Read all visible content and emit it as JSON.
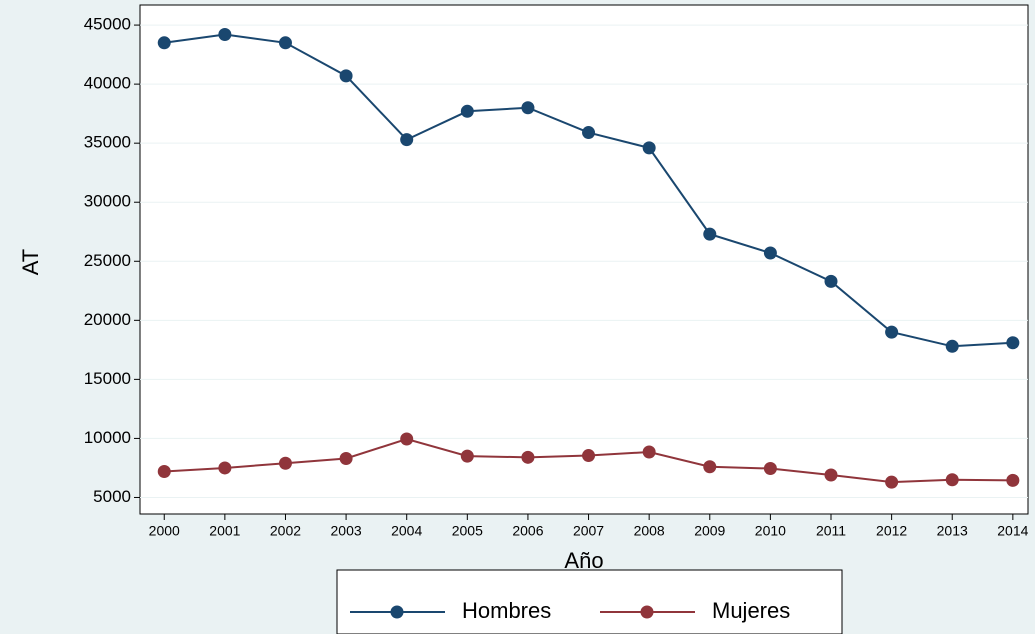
{
  "chart_data": {
    "type": "line",
    "x_label": "Año",
    "y_label": "AT",
    "x": [
      2000,
      2001,
      2002,
      2003,
      2004,
      2005,
      2006,
      2007,
      2008,
      2009,
      2010,
      2011,
      2012,
      2013,
      2014
    ],
    "series": [
      {
        "name": "Hombres",
        "color": "#1a476f",
        "values": [
          43500,
          44200,
          43500,
          40700,
          35300,
          37700,
          38000,
          35900,
          34600,
          27300,
          25700,
          23300,
          19000,
          17800,
          18100
        ]
      },
      {
        "name": "Mujeres",
        "color": "#90353b",
        "values": [
          7200,
          7500,
          7900,
          8300,
          9950,
          8500,
          8400,
          8550,
          8850,
          7600,
          7450,
          6900,
          6300,
          6500,
          6450
        ]
      }
    ],
    "xlim": [
      1999.6,
      2014.25
    ],
    "xticks": [
      2000,
      2001,
      2002,
      2003,
      2004,
      2005,
      2006,
      2007,
      2008,
      2009,
      2010,
      2011,
      2012,
      2013,
      2014
    ],
    "ylim": [
      3600,
      46700
    ],
    "yticks": [
      5000,
      10000,
      15000,
      20000,
      25000,
      30000,
      35000,
      40000,
      45000
    ],
    "grid": true,
    "legend": "bottom"
  }
}
